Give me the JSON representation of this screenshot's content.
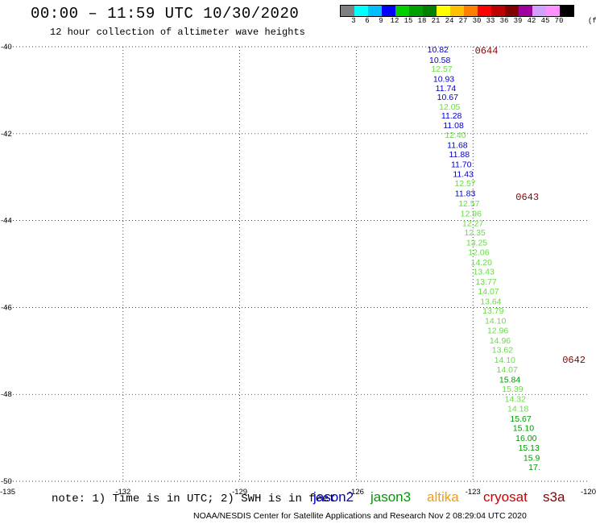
{
  "header": {
    "title": "00:00 – 11:59 UTC 10/30/2020",
    "subtitle": "12 hour collection of altimeter wave heights"
  },
  "colorbar": {
    "colors": [
      "#808080",
      "#00ffff",
      "#00bfff",
      "#0000ff",
      "#00d000",
      "#00a000",
      "#008000",
      "#ffff00",
      "#ffc000",
      "#ff8000",
      "#ff0000",
      "#c00000",
      "#800000",
      "#a000a0",
      "#d0a0ff",
      "#ff90ff",
      "#000000"
    ],
    "labels": [
      "3",
      "6",
      "9",
      "12",
      "15",
      "18",
      "21",
      "24",
      "27",
      "30",
      "33",
      "36",
      "39",
      "42",
      "45",
      "70"
    ],
    "unit": "(ft)"
  },
  "map": {
    "lon_range": [
      -135,
      -120
    ],
    "lat_range": [
      -50,
      -40
    ],
    "lon_ticks": [
      "-135",
      "-132",
      "-129",
      "-126",
      "-123",
      "-120"
    ],
    "lat_ticks": [
      "-40",
      "-42",
      "-44",
      "-46",
      "-48",
      "-50"
    ],
    "orbits": [
      {
        "label": "0644",
        "lon": -122.95,
        "lat": -40.08
      },
      {
        "label": "0643",
        "lon": -121.9,
        "lat": -43.45
      },
      {
        "label": "0642",
        "lon": -120.7,
        "lat": -47.2
      }
    ],
    "points": [
      {
        "v": "10.82",
        "lon": -123.9,
        "lat": -40.06,
        "c": "#0000cc"
      },
      {
        "v": "10.58",
        "lon": -123.85,
        "lat": -40.3,
        "c": "#0000cc"
      },
      {
        "v": "12.57",
        "lon": -123.8,
        "lat": -40.5,
        "c": "#66dd44"
      },
      {
        "v": "10.93",
        "lon": -123.75,
        "lat": -40.73,
        "c": "#0000cc"
      },
      {
        "v": "11.74",
        "lon": -123.7,
        "lat": -40.95,
        "c": "#0000cc"
      },
      {
        "v": "10.67",
        "lon": -123.65,
        "lat": -41.15,
        "c": "#0000cc"
      },
      {
        "v": "12.05",
        "lon": -123.6,
        "lat": -41.37,
        "c": "#66dd44"
      },
      {
        "v": "11.28",
        "lon": -123.55,
        "lat": -41.58,
        "c": "#0000cc"
      },
      {
        "v": "11.08",
        "lon": -123.5,
        "lat": -41.8,
        "c": "#0000cc"
      },
      {
        "v": "12.40",
        "lon": -123.45,
        "lat": -42.02,
        "c": "#66dd44"
      },
      {
        "v": "11.68",
        "lon": -123.4,
        "lat": -42.25,
        "c": "#0000cc"
      },
      {
        "v": "11.88",
        "lon": -123.35,
        "lat": -42.47,
        "c": "#0000cc"
      },
      {
        "v": "11.70",
        "lon": -123.3,
        "lat": -42.7,
        "c": "#0000cc"
      },
      {
        "v": "11.43",
        "lon": -123.25,
        "lat": -42.92,
        "c": "#0000cc"
      },
      {
        "v": "12.57",
        "lon": -123.2,
        "lat": -43.14,
        "c": "#66dd44"
      },
      {
        "v": "11.83",
        "lon": -123.2,
        "lat": -43.37,
        "c": "#0000cc"
      },
      {
        "v": "12.57",
        "lon": -123.1,
        "lat": -43.6,
        "c": "#66dd44"
      },
      {
        "v": "12.96",
        "lon": -123.05,
        "lat": -43.83,
        "c": "#66dd44"
      },
      {
        "v": "12.27",
        "lon": -123.0,
        "lat": -44.05,
        "c": "#66dd44"
      },
      {
        "v": "12.35",
        "lon": -122.95,
        "lat": -44.27,
        "c": "#66dd44"
      },
      {
        "v": "13.25",
        "lon": -122.9,
        "lat": -44.5,
        "c": "#66dd44"
      },
      {
        "v": "12.06",
        "lon": -122.85,
        "lat": -44.72,
        "c": "#66dd44"
      },
      {
        "v": "14.20",
        "lon": -122.78,
        "lat": -44.95,
        "c": "#66dd44"
      },
      {
        "v": "13.43",
        "lon": -122.72,
        "lat": -45.17,
        "c": "#66dd44"
      },
      {
        "v": "13.77",
        "lon": -122.66,
        "lat": -45.4,
        "c": "#66dd44"
      },
      {
        "v": "14.07",
        "lon": -122.6,
        "lat": -45.62,
        "c": "#66dd44"
      },
      {
        "v": "13.64",
        "lon": -122.54,
        "lat": -45.85,
        "c": "#66dd44"
      },
      {
        "v": "13.79",
        "lon": -122.48,
        "lat": -46.07,
        "c": "#66dd44"
      },
      {
        "v": "14.10",
        "lon": -122.42,
        "lat": -46.3,
        "c": "#66dd44"
      },
      {
        "v": "12.96",
        "lon": -122.36,
        "lat": -46.52,
        "c": "#66dd44"
      },
      {
        "v": "14.96",
        "lon": -122.3,
        "lat": -46.75,
        "c": "#66dd44"
      },
      {
        "v": "13.62",
        "lon": -122.24,
        "lat": -46.97,
        "c": "#66dd44"
      },
      {
        "v": "14.10",
        "lon": -122.18,
        "lat": -47.2,
        "c": "#66dd44"
      },
      {
        "v": "14.07",
        "lon": -122.12,
        "lat": -47.42,
        "c": "#66dd44"
      },
      {
        "v": "15.84",
        "lon": -122.05,
        "lat": -47.65,
        "c": "#009900"
      },
      {
        "v": "15.39",
        "lon": -121.98,
        "lat": -47.87,
        "c": "#66dd44"
      },
      {
        "v": "14.32",
        "lon": -121.91,
        "lat": -48.1,
        "c": "#66dd44"
      },
      {
        "v": "14.18",
        "lon": -121.84,
        "lat": -48.32,
        "c": "#66dd44"
      },
      {
        "v": "15.67",
        "lon": -121.77,
        "lat": -48.55,
        "c": "#009900"
      },
      {
        "v": "15.10",
        "lon": -121.7,
        "lat": -48.77,
        "c": "#009900"
      },
      {
        "v": "16.00",
        "lon": -121.63,
        "lat": -49.0,
        "c": "#009900"
      },
      {
        "v": "15.13",
        "lon": -121.56,
        "lat": -49.22,
        "c": "#009900"
      },
      {
        "v": "15.9",
        "lon": -121.49,
        "lat": -49.45,
        "c": "#009900"
      },
      {
        "v": "17.",
        "lon": -121.42,
        "lat": -49.67,
        "c": "#009900"
      }
    ]
  },
  "note": "note: 1) Time is in UTC; 2) SWH is in feet",
  "legend": [
    {
      "name": "jason2",
      "color": "#0000cc"
    },
    {
      "name": "jason3",
      "color": "#009900"
    },
    {
      "name": "altika",
      "color": "#ff9900"
    },
    {
      "name": "cryosat",
      "color": "#cc0000"
    },
    {
      "name": "s3a",
      "color": "#8b0000"
    }
  ],
  "footer": "NOAA/NESDIS Center for Satellite Applications and Research    Nov  2 08:29:04 UTC 2020"
}
